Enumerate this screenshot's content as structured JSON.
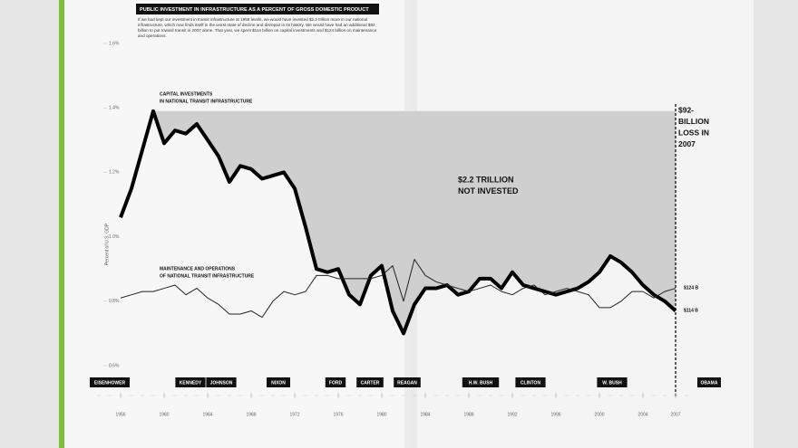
{
  "chart_data": {
    "type": "line",
    "title": "PUBLIC INVESTMENT IN INFRASTRUCTURE AS A PERCENT OF GROSS DOMESTIC PRODUCT",
    "subtitle": "If we had kept our investment in transit infrastructure at 1959 levels, we would have invested $2.2 trillion more in our national infrastructure, which now finds itself in the worst state of decline and disrepair in its history. We would have had an additional $92 billion to put toward transit in 2007 alone. That year, we spent $114 billion on capital investments and $124 billion on maintenance and operations.",
    "y_label": "Percent of U.S. GDP",
    "x": [
      1956,
      1957,
      1958,
      1959,
      1960,
      1961,
      1962,
      1963,
      1964,
      1965,
      1966,
      1967,
      1968,
      1969,
      1970,
      1971,
      1972,
      1973,
      1974,
      1975,
      1976,
      1977,
      1978,
      1979,
      1980,
      1981,
      1982,
      1983,
      1984,
      1985,
      1986,
      1987,
      1988,
      1989,
      1990,
      1991,
      1992,
      1993,
      1994,
      1995,
      1996,
      1997,
      1998,
      1999,
      2000,
      2001,
      2002,
      2003,
      2004,
      2005,
      2006,
      2007
    ],
    "series": [
      {
        "name": [
          "CAPITAL INVESTMENTS",
          "IN NATIONAL TRANSIT INFRASTRUCTURE"
        ],
        "color": "#000000",
        "end_label": "$114 B",
        "values": [
          1.06,
          1.15,
          1.27,
          1.39,
          1.29,
          1.33,
          1.32,
          1.35,
          1.3,
          1.25,
          1.17,
          1.22,
          1.21,
          1.18,
          1.19,
          1.2,
          1.15,
          1.03,
          0.9,
          0.89,
          0.9,
          0.82,
          0.79,
          0.88,
          0.91,
          0.77,
          0.7,
          0.79,
          0.84,
          0.84,
          0.85,
          0.82,
          0.83,
          0.87,
          0.87,
          0.84,
          0.89,
          0.85,
          0.84,
          0.83,
          0.82,
          0.83,
          0.84,
          0.86,
          0.89,
          0.94,
          0.92,
          0.89,
          0.85,
          0.82,
          0.8,
          0.77
        ]
      },
      {
        "name": [
          "MAINTENANCE AND OPERATIONS",
          "OF NATIONAL TRANSIT INFRASTRUCTURE"
        ],
        "color": "#222222",
        "end_label": "$124 B",
        "values": [
          0.81,
          0.82,
          0.83,
          0.83,
          0.84,
          0.85,
          0.82,
          0.84,
          0.81,
          0.79,
          0.76,
          0.76,
          0.77,
          0.75,
          0.8,
          0.83,
          0.82,
          0.83,
          0.88,
          0.88,
          0.87,
          0.87,
          0.87,
          0.87,
          0.88,
          0.91,
          0.8,
          0.93,
          0.88,
          0.86,
          0.85,
          0.84,
          0.83,
          0.84,
          0.85,
          0.83,
          0.82,
          0.84,
          0.85,
          0.82,
          0.83,
          0.84,
          0.83,
          0.82,
          0.78,
          0.78,
          0.8,
          0.83,
          0.83,
          0.81,
          0.83,
          0.84
        ]
      }
    ],
    "annotations": [
      [
        "$2.2 TRILLION",
        "NOT INVESTED"
      ],
      [
        "$92-",
        "BILLION",
        "LOSS IN",
        "2007"
      ]
    ],
    "presidents": [
      "EISENHOWER",
      "KENNEDY",
      "JOHNSON",
      "NIXON",
      "FORD",
      "CARTER",
      "REAGAN",
      "H.W. BUSH",
      "CLINTON",
      "W. BUSH",
      "OBAMA"
    ],
    "xlim": [
      1953,
      2009
    ],
    "xticks": [
      1956,
      1960,
      1964,
      1968,
      1972,
      1976,
      1980,
      1984,
      1988,
      1992,
      1996,
      2000,
      2004,
      2007
    ],
    "ylim": [
      0.6,
      1.6
    ],
    "yticks": [
      {
        "value": 0.6,
        "label": "0.6%"
      },
      {
        "value": 0.8,
        "label": "0.8%"
      },
      {
        "value": 1.0,
        "label": "1.0%"
      },
      {
        "value": 1.2,
        "label": "1.2%"
      },
      {
        "value": 1.4,
        "label": "1.4%"
      },
      {
        "value": 1.6,
        "label": "1.6%"
      }
    ],
    "grid": false
  }
}
